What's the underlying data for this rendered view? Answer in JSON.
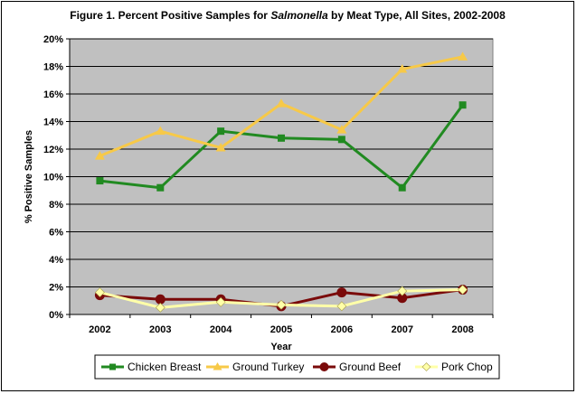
{
  "chart_data": {
    "type": "line",
    "title_prefix": "Figure 1. Percent Positive Samples for ",
    "title_italic": "Salmonella",
    "title_suffix": " by Meat Type, All Sites, 2002-2008",
    "xlabel": "Year",
    "ylabel": "% Positive Samples",
    "categories": [
      "2002",
      "2003",
      "2004",
      "2005",
      "2006",
      "2007",
      "2008"
    ],
    "ylim": [
      0,
      20
    ],
    "yticks": [
      0,
      2,
      4,
      6,
      8,
      10,
      12,
      14,
      16,
      18,
      20
    ],
    "ytick_labels": [
      "0%",
      "2%",
      "4%",
      "6%",
      "8%",
      "10%",
      "12%",
      "14%",
      "16%",
      "18%",
      "20%"
    ],
    "grid": "horizontal",
    "plot_background": "#c0c0c0",
    "legend_position": "bottom",
    "series": [
      {
        "name": "Chicken Breast",
        "color": "#218a21",
        "marker": "square",
        "values": [
          9.7,
          9.2,
          13.3,
          12.8,
          12.7,
          9.2,
          15.2
        ]
      },
      {
        "name": "Ground Turkey",
        "color": "#f7c948",
        "marker": "triangle",
        "values": [
          11.5,
          13.3,
          12.1,
          15.3,
          13.4,
          17.8,
          18.7
        ]
      },
      {
        "name": "Ground Beef",
        "color": "#7a0a0a",
        "marker": "circle",
        "values": [
          1.4,
          1.1,
          1.1,
          0.6,
          1.6,
          1.2,
          1.8
        ]
      },
      {
        "name": "Pork Chop",
        "color": "#ffffa8",
        "marker": "diamond",
        "values": [
          1.6,
          0.5,
          0.9,
          0.7,
          0.6,
          1.7,
          1.8
        ]
      }
    ]
  }
}
